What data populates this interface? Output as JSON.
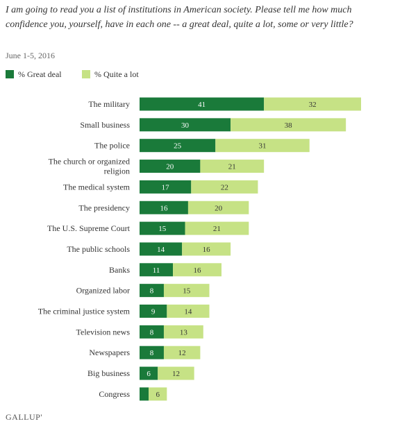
{
  "header": {
    "title": "I am going to read you a list of institutions in American society. Please tell me how much confidence you, yourself, have in each one -- a great deal, quite a lot, some or very little?",
    "subtitle": "June 1-5, 2016"
  },
  "footer": {
    "source": "GALLUP'"
  },
  "colors": {
    "great_deal": "#1a7a3a",
    "quite_a_lot": "#c6e285",
    "great_deal_text": "#ffffff",
    "quite_a_lot_text": "#333333"
  },
  "chart_data": {
    "type": "bar",
    "orientation": "horizontal",
    "stacked": true,
    "title": "I am going to read you a list of institutions in American society. Please tell me how much confidence you, yourself, have in each one -- a great deal, quite a lot, some or very little?",
    "subtitle": "June 1-5, 2016",
    "legend_position": "top-left",
    "grid": false,
    "xlim": [
      0,
      75
    ],
    "categories": [
      "The military",
      "Small business",
      "The police",
      "The church or organized religion",
      "The medical system",
      "The presidency",
      "The U.S. Supreme Court",
      "The public schools",
      "Banks",
      "Organized labor",
      "The criminal justice system",
      "Television news",
      "Newspapers",
      "Big business",
      "Congress"
    ],
    "category_lines": [
      [
        "The military"
      ],
      [
        "Small business"
      ],
      [
        "The police"
      ],
      [
        "The church or organized",
        "religion"
      ],
      [
        "The medical system"
      ],
      [
        "The presidency"
      ],
      [
        "The U.S. Supreme Court"
      ],
      [
        "The public schools"
      ],
      [
        "Banks"
      ],
      [
        "Organized labor"
      ],
      [
        "The criminal justice system"
      ],
      [
        "Television news"
      ],
      [
        "Newspapers"
      ],
      [
        "Big business"
      ],
      [
        "Congress"
      ]
    ],
    "series": [
      {
        "name": "% Great deal",
        "values": [
          41,
          30,
          25,
          20,
          17,
          16,
          15,
          14,
          11,
          8,
          9,
          8,
          8,
          6,
          3
        ],
        "labels": [
          "41",
          "30",
          "25",
          "20",
          "17",
          "16",
          "15",
          "14",
          "11",
          "8",
          "9",
          "8",
          "8",
          "6",
          ""
        ]
      },
      {
        "name": "% Quite a lot",
        "values": [
          32,
          38,
          31,
          21,
          22,
          20,
          21,
          16,
          16,
          15,
          14,
          13,
          12,
          12,
          6
        ],
        "labels": [
          "32",
          "38",
          "31",
          "21",
          "22",
          "20",
          "21",
          "16",
          "16",
          "15",
          "14",
          "13",
          "12",
          "12",
          "6"
        ]
      }
    ]
  }
}
